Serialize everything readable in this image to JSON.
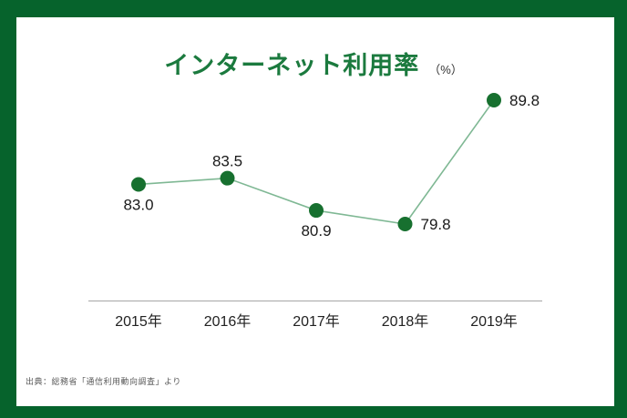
{
  "header": {
    "title": "インターネット利用率",
    "unit": "（%）"
  },
  "chart_data": {
    "type": "line",
    "title": "インターネット利用率",
    "unit_label": "（%）",
    "categories": [
      "2015年",
      "2016年",
      "2017年",
      "2018年",
      "2019年"
    ],
    "values": [
      83.0,
      83.5,
      80.9,
      79.8,
      89.8
    ],
    "value_label_positions": [
      "below",
      "above",
      "below",
      "right",
      "right"
    ],
    "xlabel": "",
    "ylabel": "",
    "ylim": [
      78,
      92
    ],
    "grid": false,
    "legend": "none"
  },
  "footer": {
    "source": "出典：総務省「通信利用動向調査」より"
  },
  "colors": {
    "frame_green": "#06632c",
    "title_green": "#1b7a3e",
    "point_green": "#17702f",
    "line_green": "#7fb894",
    "axis_gray": "#a6a6a6",
    "label_black": "#1a1a1a",
    "source_gray": "#595959"
  }
}
